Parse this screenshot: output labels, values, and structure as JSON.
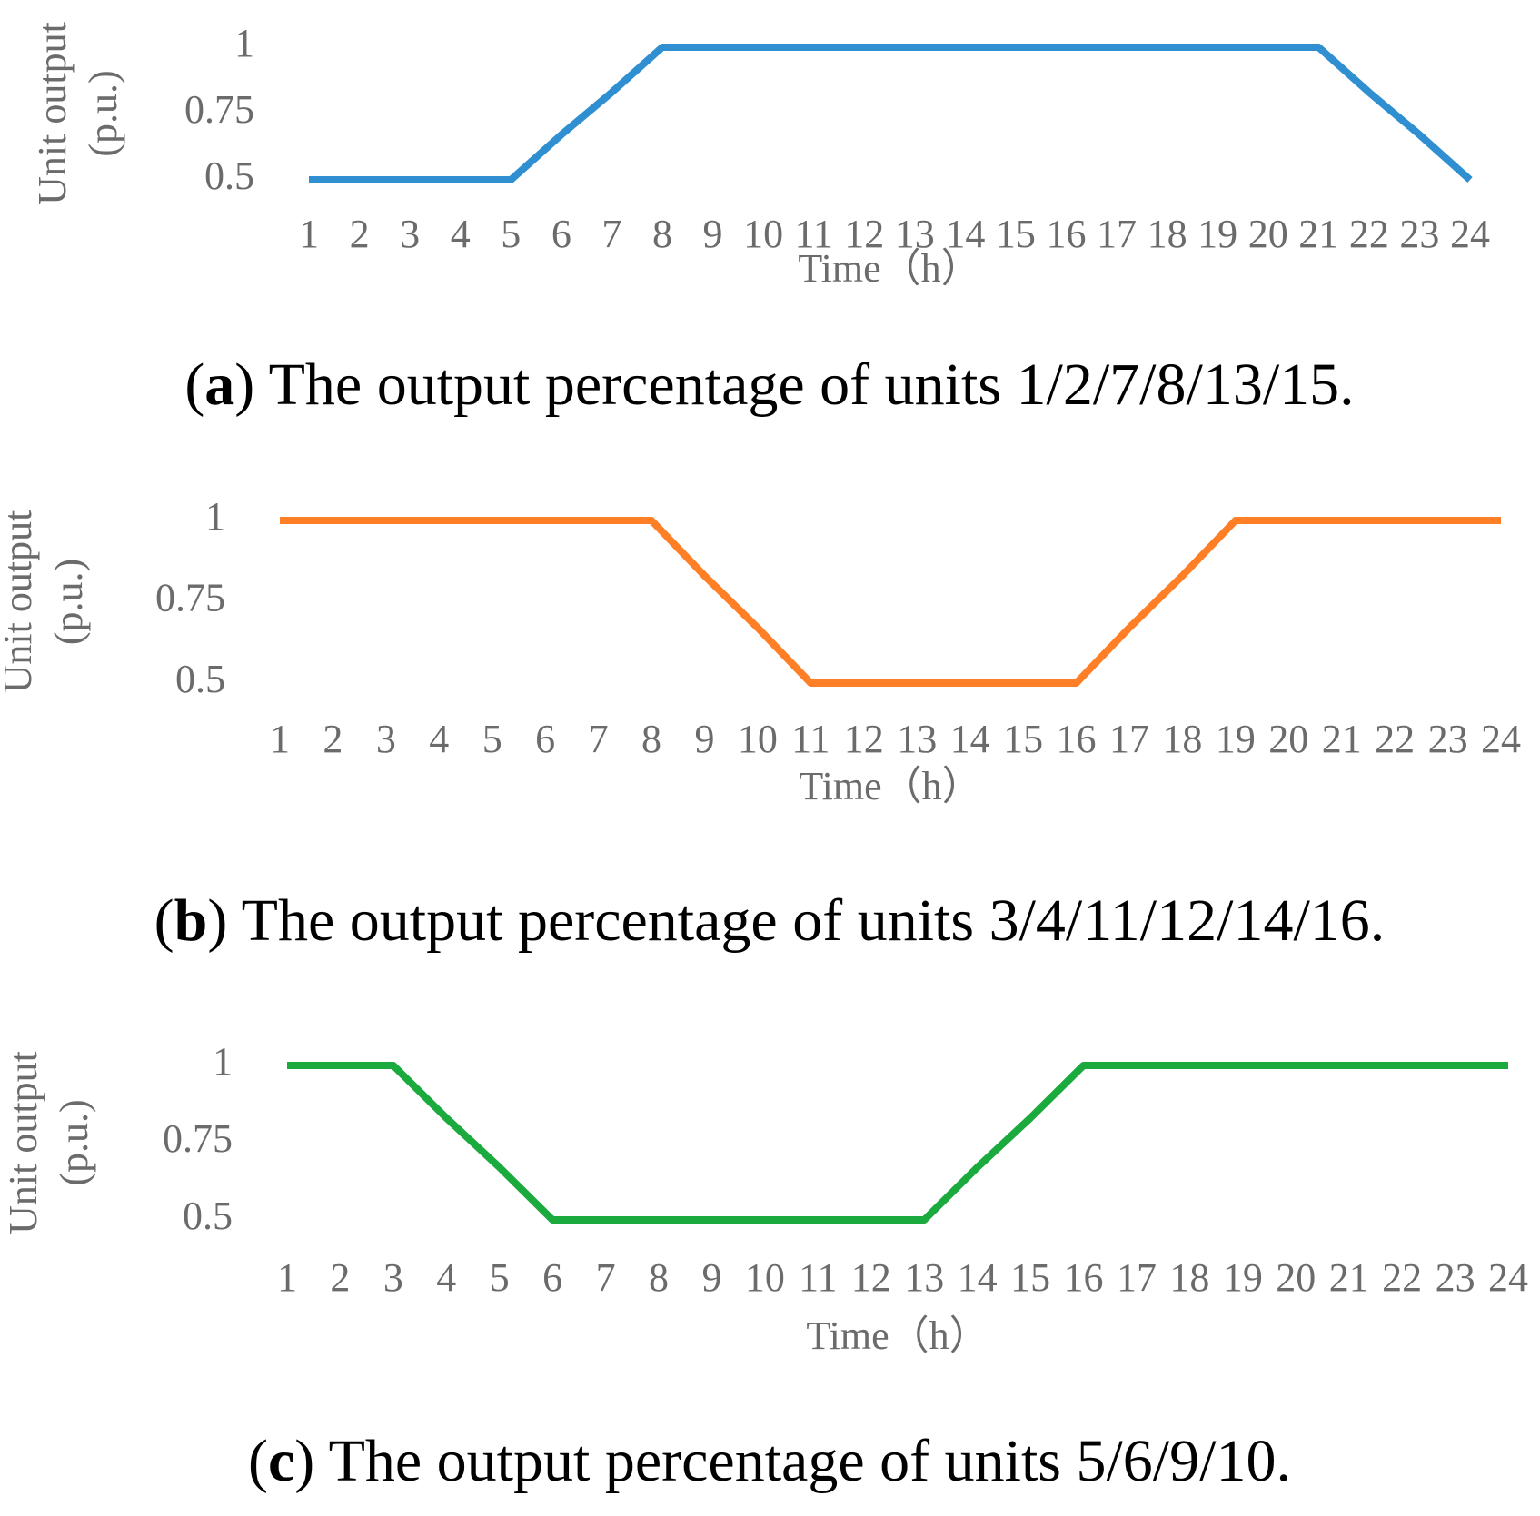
{
  "chart_data": [
    {
      "type": "line",
      "y_label": [
        "Unit output",
        "(p.u.)"
      ],
      "x_label": "Time（h）",
      "caption": [
        "(",
        "a",
        ") The output percentage of units 1/2/7/8/13/15."
      ],
      "categories": [
        "1",
        "2",
        "3",
        "4",
        "5",
        "6",
        "7",
        "8",
        "9",
        "10",
        "11",
        "12",
        "13",
        "14",
        "15",
        "16",
        "17",
        "18",
        "19",
        "20",
        "21",
        "22",
        "23",
        "24"
      ],
      "values": [
        0.5,
        0.5,
        0.5,
        0.5,
        0.5,
        0.67,
        0.83,
        1,
        1,
        1,
        1,
        1,
        1,
        1,
        1,
        1,
        1,
        1,
        1,
        1,
        1,
        0.83,
        0.67,
        0.5
      ],
      "color": "#2f8fd1",
      "ylim": [
        0.5,
        1
      ],
      "yticks": [
        0.5,
        0.75,
        1
      ]
    },
    {
      "type": "line",
      "y_label": [
        "Unit output",
        "(p.u.)"
      ],
      "x_label": "Time（h）",
      "caption": [
        "(",
        "b",
        ") The output percentage of units 3/4/11/12/14/16."
      ],
      "categories": [
        "1",
        "2",
        "3",
        "4",
        "5",
        "6",
        "7",
        "8",
        "9",
        "10",
        "11",
        "12",
        "13",
        "14",
        "15",
        "16",
        "17",
        "18",
        "19",
        "20",
        "21",
        "22",
        "23",
        "24"
      ],
      "values": [
        1,
        1,
        1,
        1,
        1,
        1,
        1,
        1,
        0.83,
        0.67,
        0.5,
        0.5,
        0.5,
        0.5,
        0.5,
        0.5,
        0.67,
        0.83,
        1,
        1,
        1,
        1,
        1,
        1
      ],
      "color": "#ff7f27",
      "ylim": [
        0.5,
        1
      ],
      "yticks": [
        0.5,
        0.75,
        1
      ]
    },
    {
      "type": "line",
      "y_label": [
        "Unit output",
        "(p.u.)"
      ],
      "x_label": "Time（h）",
      "caption": [
        "(",
        "c",
        ") The output percentage of units 5/6/9/10."
      ],
      "categories": [
        "1",
        "2",
        "3",
        "4",
        "5",
        "6",
        "7",
        "8",
        "9",
        "10",
        "11",
        "12",
        "13",
        "14",
        "15",
        "16",
        "17",
        "18",
        "19",
        "20",
        "21",
        "22",
        "23",
        "24"
      ],
      "values": [
        1,
        1,
        1,
        0.83,
        0.67,
        0.5,
        0.5,
        0.5,
        0.5,
        0.5,
        0.5,
        0.5,
        0.5,
        0.67,
        0.83,
        1,
        1,
        1,
        1,
        1,
        1,
        1,
        1,
        1
      ],
      "color": "#1baa3e",
      "ylim": [
        0.5,
        1
      ],
      "yticks": [
        0.5,
        0.75,
        1
      ]
    }
  ]
}
